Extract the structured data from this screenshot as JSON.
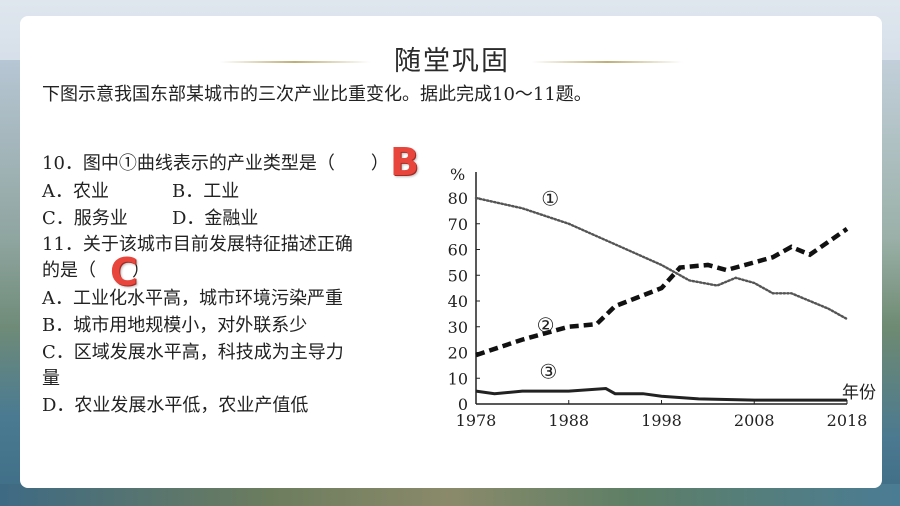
{
  "slide": {
    "title": "随堂巩固",
    "intro": "下图示意我国东部某城市的三次产业比重变化。据此完成10～11题。"
  },
  "q10": {
    "stem": "10．图中①曲线表示的产业类型是（　　）",
    "answer": "B",
    "opt_a": "A．农业",
    "opt_b": "B．工业",
    "opt_c": "C．服务业",
    "opt_d": "D．金融业"
  },
  "q11": {
    "stem_line1": "11．关于该城市目前发展特征描述正确",
    "stem_line2": "的是（　　）",
    "answer": "C",
    "opt_a": "A．工业化水平高，城市环境污染严重",
    "opt_b": "B．城市用地规模小，对外联系少",
    "opt_c_line1": "C．区域发展水平高，科技成为主导力",
    "opt_c_line2": "量",
    "opt_d": "D．农业发展水平低，农业产值低"
  },
  "chart_data": {
    "type": "line",
    "ylabel": "%",
    "xlabel": "年份",
    "ylim": [
      0,
      85
    ],
    "xlim": [
      1978,
      2018
    ],
    "yticks": [
      0,
      10,
      20,
      30,
      40,
      50,
      60,
      70,
      80
    ],
    "xticks": [
      1978,
      1988,
      1998,
      2008,
      2018
    ],
    "series": [
      {
        "name": "①",
        "style": "dotted",
        "x": [
          1978,
          1983,
          1988,
          1993,
          1998,
          2001,
          2004,
          2006,
          2008,
          2010,
          2012,
          2014,
          2016,
          2018
        ],
        "y": [
          80,
          76,
          70,
          62,
          54,
          48,
          46,
          49,
          47,
          43,
          43,
          40,
          37,
          33
        ]
      },
      {
        "name": "②",
        "style": "dashed",
        "x": [
          1978,
          1983,
          1988,
          1991,
          1993,
          1998,
          2000,
          2003,
          2005,
          2008,
          2010,
          2012,
          2014,
          2016,
          2018
        ],
        "y": [
          19,
          25,
          30,
          31,
          38,
          45,
          53,
          54,
          52,
          55,
          57,
          61,
          58,
          63,
          68
        ]
      },
      {
        "name": "③",
        "style": "solid",
        "x": [
          1978,
          1980,
          1983,
          1988,
          1992,
          1993,
          1996,
          1998,
          2002,
          2008,
          2012,
          2018
        ],
        "y": [
          5,
          4,
          5,
          5,
          6,
          4,
          4,
          3,
          2,
          1.5,
          1.5,
          1.5
        ]
      }
    ]
  }
}
